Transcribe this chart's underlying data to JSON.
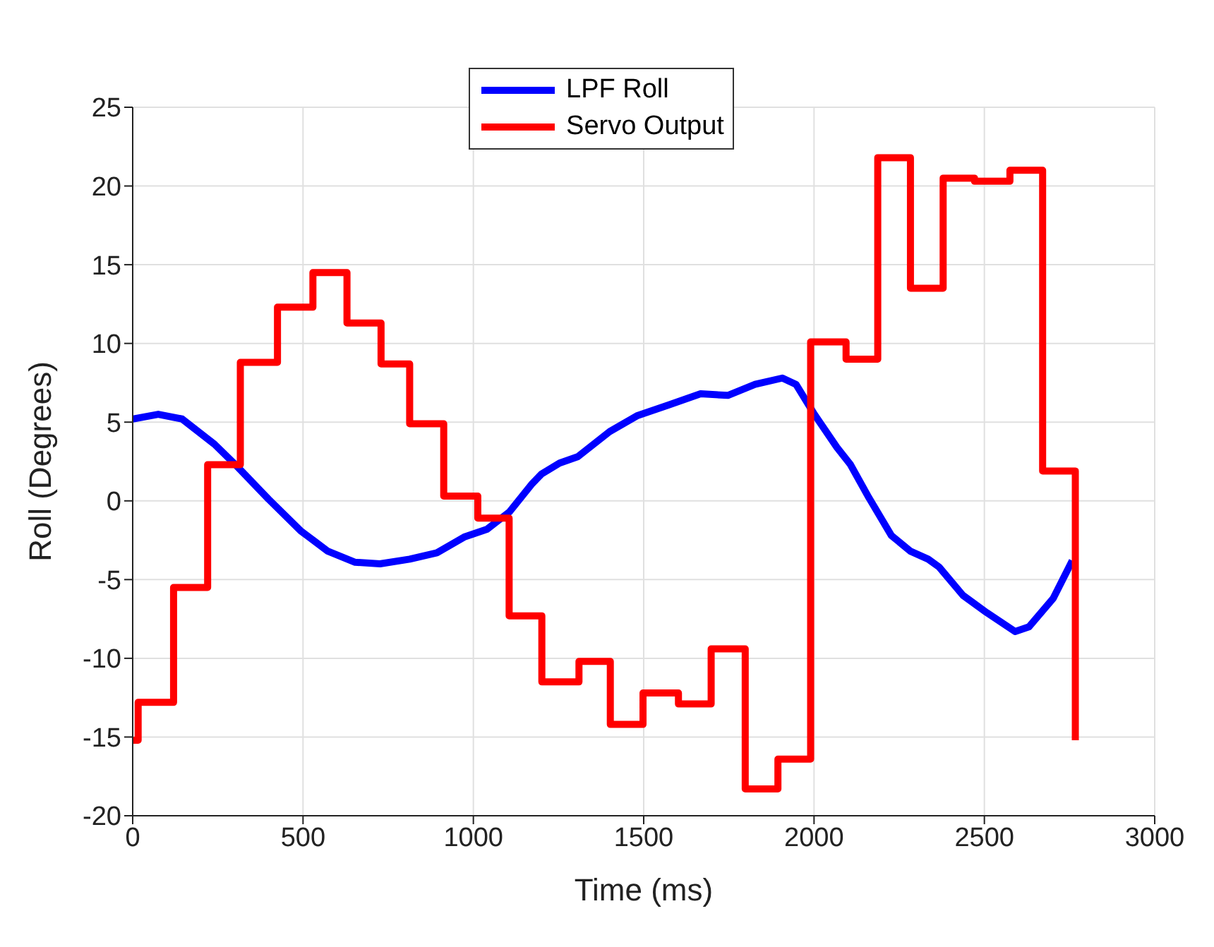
{
  "chart_data": {
    "type": "line",
    "xlabel": "Time (ms)",
    "ylabel": "Roll (Degrees)",
    "xlim": [
      0,
      3000
    ],
    "xticks": [
      0,
      500,
      1000,
      1500,
      2000,
      2500,
      3000
    ],
    "ylim": [
      -20,
      25
    ],
    "yticks": [
      -20,
      -15,
      -10,
      -5,
      0,
      5,
      10,
      15,
      20,
      25
    ],
    "grid": true,
    "legend": "top",
    "marker": "none",
    "line_style": "solid",
    "series": [
      {
        "name": "LPF Roll",
        "color": "#0000ff",
        "x": [
          0,
          75,
          145,
          240,
          306,
          399,
          493,
          573,
          653,
          726,
          813,
          893,
          973,
          1040,
          1106,
          1173,
          1200,
          1253,
          1306,
          1400,
          1480,
          1574,
          1667,
          1747,
          1827,
          1907,
          1947,
          2001,
          2067,
          2107,
          2161,
          2227,
          2283,
          2335,
          2367,
          2437,
          2507,
          2590,
          2631,
          2702,
          2758
        ],
        "values": [
          5.2,
          5.5,
          5.2,
          3.6,
          2.2,
          0.1,
          -1.9,
          -3.2,
          -3.9,
          -4.0,
          -3.7,
          -3.3,
          -2.3,
          -1.8,
          -0.7,
          1.1,
          1.7,
          2.4,
          2.8,
          4.4,
          5.4,
          6.1,
          6.8,
          6.7,
          7.4,
          7.8,
          7.4,
          5.5,
          3.4,
          2.3,
          0.2,
          -2.2,
          -3.2,
          -3.7,
          -4.2,
          -6.0,
          -7.1,
          -8.3,
          -8.0,
          -6.2,
          -3.8
        ]
      },
      {
        "name": "Servo Output",
        "color": "#ff0000",
        "type": "step",
        "x": [
          0,
          16,
          120,
          220,
          316,
          425,
          529,
          629,
          729,
          813,
          913,
          1013,
          1105,
          1201,
          1310,
          1402,
          1498,
          1602,
          1698,
          1798,
          1894,
          1990,
          2094,
          2187,
          2283,
          2379,
          2471,
          2575,
          2671,
          2767
        ],
        "values": [
          -15.2,
          -12.8,
          -5.5,
          2.3,
          8.8,
          12.3,
          14.5,
          11.3,
          8.7,
          4.9,
          0.3,
          -1.1,
          -7.3,
          -11.5,
          -10.2,
          -14.2,
          -12.2,
          -12.9,
          -9.4,
          -18.3,
          -16.4,
          10.1,
          9.0,
          21.8,
          13.5,
          20.5,
          20.3,
          21.0,
          1.9,
          -15.2
        ]
      }
    ]
  }
}
